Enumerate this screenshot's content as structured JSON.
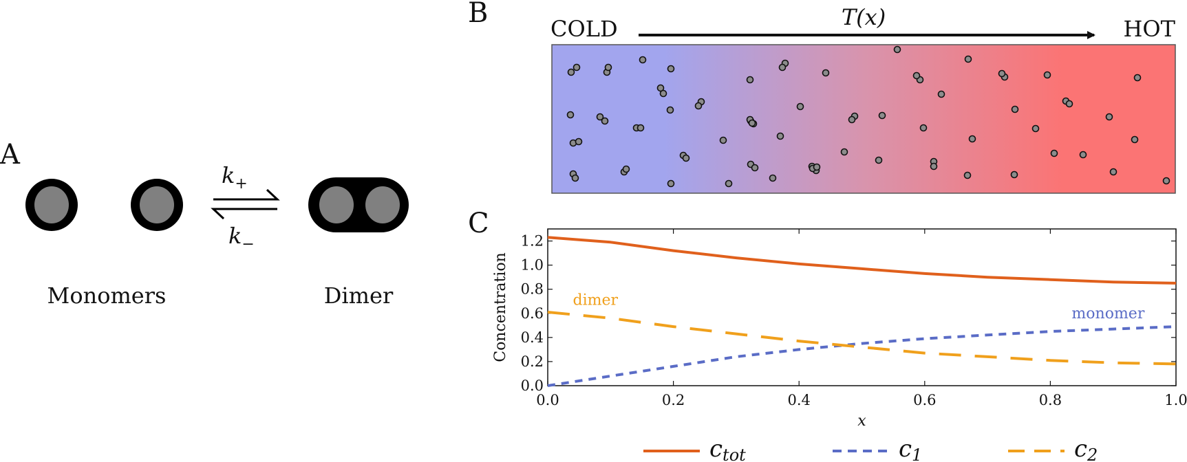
{
  "panels": {
    "a": "A",
    "b": "B",
    "c": "C"
  },
  "reaction": {
    "monomers_label": "Monomers",
    "dimer_label": "Dimer",
    "k_plus": "k",
    "k_plus_sub": "+",
    "k_minus": "k",
    "k_minus_sub": "−"
  },
  "gradient": {
    "cold_label": "COLD",
    "hot_label": "HOT",
    "temperature_label": "T(x)",
    "cold_color": "#a2a5ee",
    "mid_color": "#d894ad",
    "hot_color": "#fb7474"
  },
  "chart_data": {
    "type": "line",
    "xlabel": "x",
    "ylabel": "Concentration",
    "xlim": [
      0,
      1
    ],
    "ylim": [
      0,
      1.3
    ],
    "x_ticks": [
      "0.0",
      "0.2",
      "0.4",
      "0.6",
      "0.8",
      "1.0"
    ],
    "y_ticks": [
      "0.0",
      "0.2",
      "0.4",
      "0.6",
      "0.8",
      "1.0",
      "1.2"
    ],
    "annotations": [
      {
        "text": "dimer",
        "color": "#f0a01c"
      },
      {
        "text": "monomer",
        "color": "#5a6cc6"
      }
    ],
    "series": [
      {
        "name": "c_tot",
        "name_main": "c",
        "name_sub": "tot",
        "color": "#e0601c",
        "style": "solid",
        "x": [
          0,
          0.1,
          0.2,
          0.3,
          0.4,
          0.5,
          0.6,
          0.7,
          0.8,
          0.9,
          1.0
        ],
        "y": [
          1.23,
          1.19,
          1.12,
          1.06,
          1.01,
          0.97,
          0.93,
          0.9,
          0.88,
          0.86,
          0.85
        ]
      },
      {
        "name": "c_1",
        "name_main": "c",
        "name_sub": "1",
        "color": "#5a6cc6",
        "style": "dotted",
        "x": [
          0,
          0.1,
          0.2,
          0.3,
          0.4,
          0.5,
          0.6,
          0.7,
          0.8,
          0.9,
          1.0
        ],
        "y": [
          0.0,
          0.08,
          0.16,
          0.24,
          0.3,
          0.35,
          0.39,
          0.42,
          0.45,
          0.47,
          0.49
        ]
      },
      {
        "name": "c_2",
        "name_main": "c",
        "name_sub": "2",
        "color": "#f0a01c",
        "style": "dashed",
        "x": [
          0,
          0.1,
          0.2,
          0.3,
          0.4,
          0.5,
          0.6,
          0.7,
          0.8,
          0.9,
          1.0
        ],
        "y": [
          0.61,
          0.56,
          0.49,
          0.43,
          0.37,
          0.32,
          0.27,
          0.24,
          0.21,
          0.19,
          0.18
        ]
      }
    ]
  }
}
